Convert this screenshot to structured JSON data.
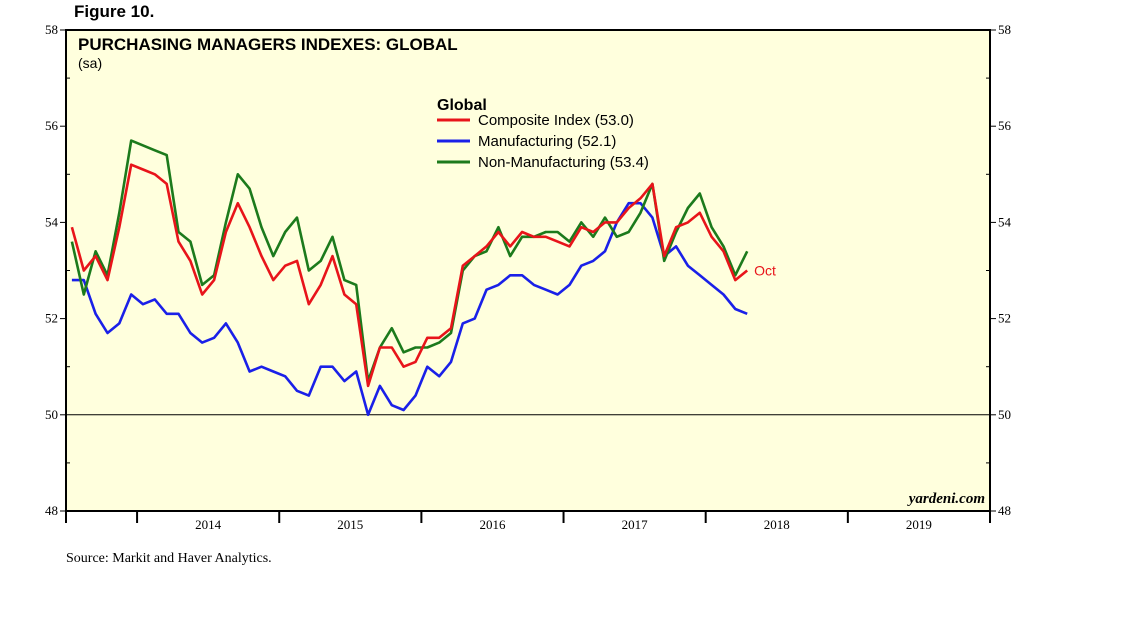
{
  "figure_label": "Figure 10.",
  "source": "Source:  Markit and Haver Analytics.",
  "brand": "yardeni.com",
  "chart_data": {
    "type": "line",
    "title": "PURCHASING MANAGERS INDEXES: GLOBAL",
    "subtitle": "(sa)",
    "legend_title": "Global",
    "legend_position": "top-center",
    "x_start": "2013-07",
    "x_tick_labels": [
      "2014",
      "2015",
      "2016",
      "2017",
      "2018",
      "2019"
    ],
    "y_ticks": [
      48,
      50,
      52,
      54,
      56,
      58
    ],
    "y_tick_labels": [
      "48",
      "50",
      "52",
      "54",
      "56",
      "58"
    ],
    "ylim": [
      48,
      58
    ],
    "xlim": [
      "2013-07",
      "2019-12"
    ],
    "reference_line": 50,
    "background_color": "#ffffdd",
    "end_label": "Oct",
    "series": [
      {
        "name": "Composite Index (53.0)",
        "color": "#e8141a",
        "values": [
          53.9,
          53.0,
          53.3,
          52.8,
          53.9,
          55.2,
          55.1,
          55.0,
          54.8,
          53.6,
          53.2,
          52.5,
          52.8,
          53.8,
          54.4,
          53.9,
          53.3,
          52.8,
          53.1,
          53.2,
          52.3,
          52.7,
          53.3,
          52.5,
          52.3,
          50.6,
          51.4,
          51.4,
          51.0,
          51.1,
          51.6,
          51.6,
          51.8,
          53.1,
          53.3,
          53.5,
          53.8,
          53.5,
          53.8,
          53.7,
          53.7,
          53.6,
          53.5,
          53.9,
          53.8,
          54.0,
          54.0,
          54.3,
          54.5,
          54.8,
          53.3,
          53.9,
          54.0,
          54.2,
          53.7,
          53.4,
          52.8,
          53.0
        ]
      },
      {
        "name": "Manufacturing (52.1)",
        "color": "#1a20e8",
        "values": [
          52.8,
          52.8,
          52.1,
          51.7,
          51.9,
          52.5,
          52.3,
          52.4,
          52.1,
          52.1,
          51.7,
          51.5,
          51.6,
          51.9,
          51.5,
          50.9,
          51.0,
          50.9,
          50.8,
          50.5,
          50.4,
          51.0,
          51.0,
          50.7,
          50.9,
          50.0,
          50.6,
          50.2,
          50.1,
          50.4,
          51.0,
          50.8,
          51.1,
          51.9,
          52.0,
          52.6,
          52.7,
          52.9,
          52.9,
          52.7,
          52.6,
          52.5,
          52.7,
          53.1,
          53.2,
          53.4,
          54.0,
          54.4,
          54.4,
          54.1,
          53.3,
          53.5,
          53.1,
          52.9,
          52.7,
          52.5,
          52.2,
          52.1
        ]
      },
      {
        "name": "Non-Manufacturing (53.4)",
        "color": "#1c7a1c",
        "values": [
          53.6,
          52.5,
          53.4,
          52.9,
          54.2,
          55.7,
          55.6,
          55.5,
          55.4,
          53.8,
          53.6,
          52.7,
          52.9,
          54.0,
          55.0,
          54.7,
          53.9,
          53.3,
          53.8,
          54.1,
          53.0,
          53.2,
          53.7,
          52.8,
          52.7,
          50.7,
          51.4,
          51.8,
          51.3,
          51.4,
          51.4,
          51.5,
          51.7,
          53.0,
          53.3,
          53.4,
          53.9,
          53.3,
          53.7,
          53.7,
          53.8,
          53.8,
          53.6,
          54.0,
          53.7,
          54.1,
          53.7,
          53.8,
          54.2,
          54.8,
          53.2,
          53.8,
          54.3,
          54.6,
          53.9,
          53.5,
          52.9,
          53.4
        ]
      }
    ]
  }
}
